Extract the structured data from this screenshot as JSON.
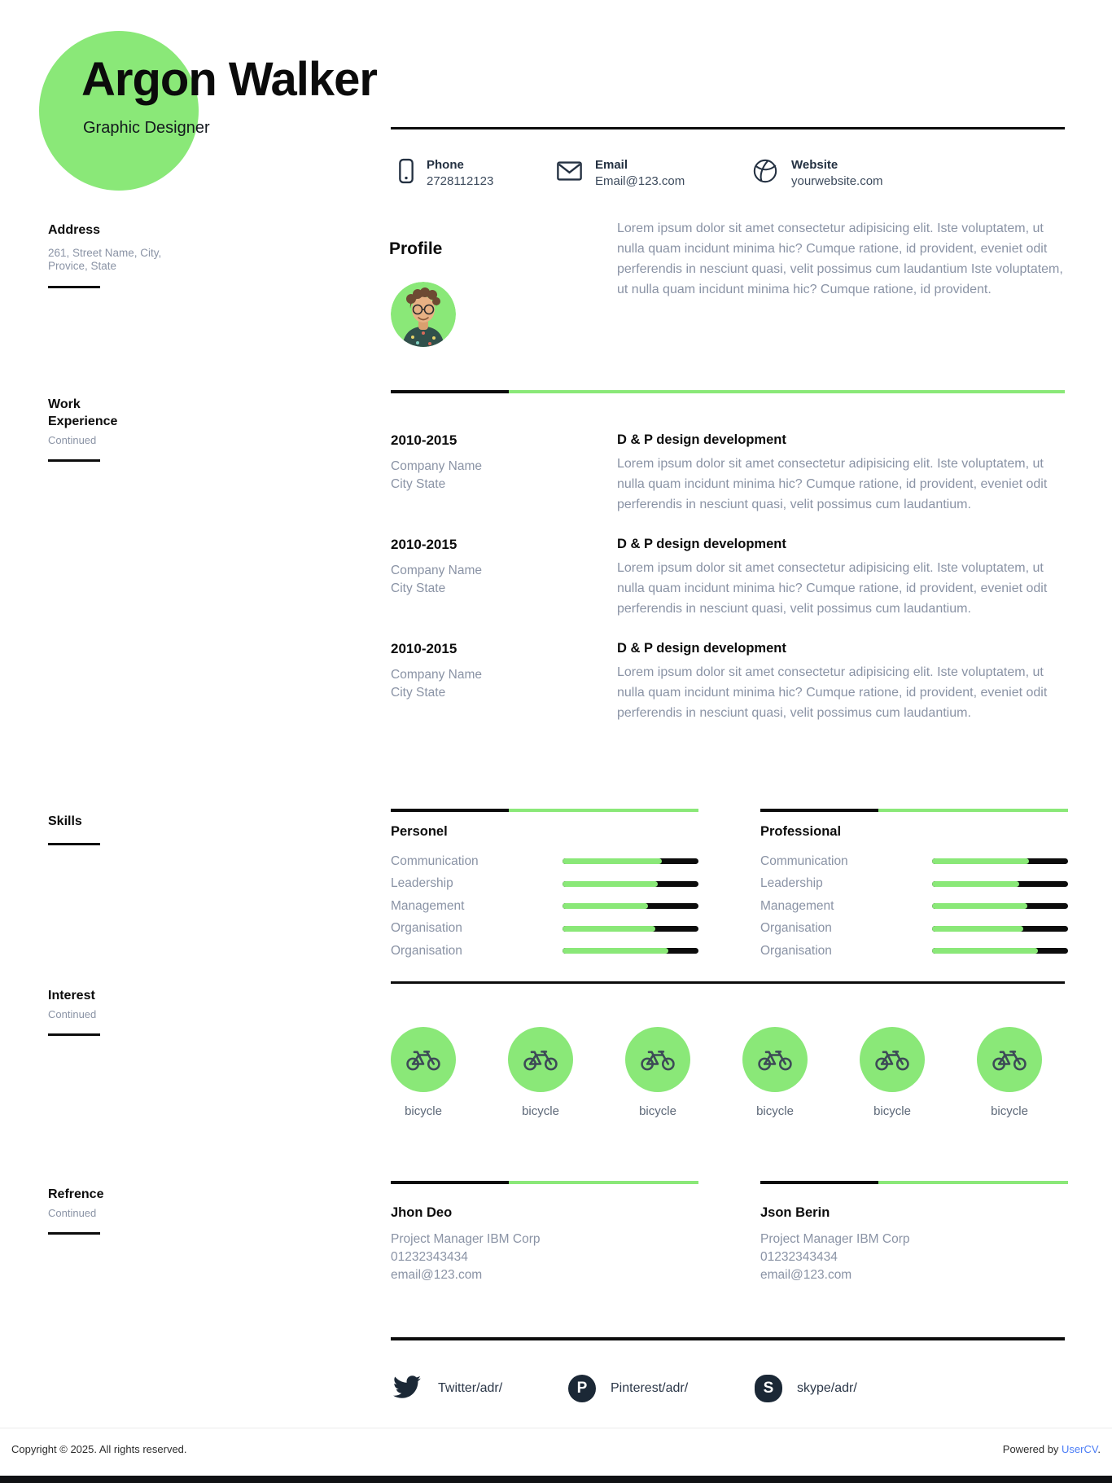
{
  "colors": {
    "accent_green": "#8ae878",
    "dark": "#0c0c0c",
    "icon_navy": "#243142",
    "text_gray": "#8a93a5",
    "link_blue": "#4a7cf6"
  },
  "header": {
    "name": "Argon Walker",
    "role": "Graphic Designer"
  },
  "contact": {
    "items": [
      {
        "label": "Phone",
        "value": "2728112123",
        "icon": "phone-icon"
      },
      {
        "label": "Email",
        "value": "Email@123.com",
        "icon": "email-icon"
      },
      {
        "label": "Website",
        "value": "yourwebsite.com",
        "icon": "website-icon"
      }
    ]
  },
  "sidebar": {
    "address": {
      "title": "Address",
      "line1": "261, Street Name, City,",
      "line2": "Provice, State"
    },
    "work": {
      "title": "Work Experience",
      "note": "Continued"
    },
    "skills": {
      "title": "Skills"
    },
    "interest": {
      "title": "Interest",
      "note": "Continued"
    },
    "reference": {
      "title": "Refrence",
      "note": "Continued"
    }
  },
  "profile": {
    "title": "Profile",
    "text": "Lorem ipsum dolor sit amet consectetur adipisicing elit. Iste voluptatem, ut nulla quam incidunt minima hic? Cumque ratione, id provident, eveniet odit perferendis in nesciunt quasi, velit possimus cum laudantium Iste voluptatem, ut nulla quam incidunt minima hic? Cumque ratione, id provident."
  },
  "work": {
    "entries": [
      {
        "period": "2010-2015",
        "company": "Company Name",
        "location": "City State",
        "title": "D & P design development",
        "description": "Lorem ipsum dolor sit amet consectetur adipisicing elit. Iste voluptatem, ut nulla quam incidunt minima hic? Cumque ratione, id provident, eveniet odit perferendis in nesciunt quasi, velit possimus cum laudantium."
      },
      {
        "period": "2010-2015",
        "company": "Company Name",
        "location": "City State",
        "title": "D & P design development",
        "description": "Lorem ipsum dolor sit amet consectetur adipisicing elit. Iste voluptatem, ut nulla quam incidunt minima hic? Cumque ratione, id provident, eveniet odit perferendis in nesciunt quasi, velit possimus cum laudantium."
      },
      {
        "period": "2010-2015",
        "company": "Company Name",
        "location": "City State",
        "title": "D & P design development",
        "description": "Lorem ipsum dolor sit amet consectetur adipisicing elit. Iste voluptatem, ut nulla quam incidunt minima hic? Cumque ratione, id provident, eveniet odit perferendis in nesciunt quasi, velit possimus cum laudantium."
      }
    ]
  },
  "skills": {
    "columns": [
      {
        "title": "Personel",
        "items": [
          {
            "label": "Communication",
            "percent": 73
          },
          {
            "label": "Leadership",
            "percent": 70
          },
          {
            "label": "Management",
            "percent": 63
          },
          {
            "label": "Organisation",
            "percent": 68
          },
          {
            "label": "Organisation",
            "percent": 78
          }
        ]
      },
      {
        "title": "Professional",
        "items": [
          {
            "label": "Communication",
            "percent": 71
          },
          {
            "label": "Leadership",
            "percent": 64
          },
          {
            "label": "Management",
            "percent": 70
          },
          {
            "label": "Organisation",
            "percent": 67
          },
          {
            "label": "Organisation",
            "percent": 78
          }
        ]
      }
    ]
  },
  "interest": {
    "items": [
      {
        "label": "bicycle"
      },
      {
        "label": "bicycle"
      },
      {
        "label": "bicycle"
      },
      {
        "label": "bicycle"
      },
      {
        "label": "bicycle"
      },
      {
        "label": "bicycle"
      }
    ]
  },
  "references": {
    "items": [
      {
        "name": "Jhon Deo",
        "role": "Project Manager IBM Corp",
        "phone": "01232343434",
        "email": "email@123.com"
      },
      {
        "name": "Json Berin",
        "role": "Project Manager IBM Corp",
        "phone": "01232343434",
        "email": "email@123.com"
      }
    ]
  },
  "social": {
    "items": [
      {
        "label": "Twitter/adr/"
      },
      {
        "label": "Pinterest/adr/",
        "icon_letter": "P"
      },
      {
        "label": "skype/adr/",
        "icon_letter": "S"
      }
    ]
  },
  "footer": {
    "copyright": "Copyright © 2025. All rights reserved.",
    "powered_prefix": "Powered by ",
    "brand": "UserCV",
    "suffix": "."
  }
}
